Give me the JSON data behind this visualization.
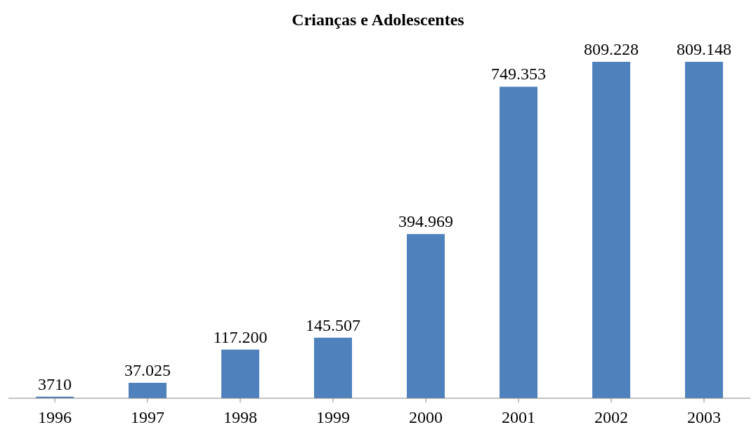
{
  "chart_data": {
    "type": "bar",
    "title": "Crianças e Adolescentes",
    "categories": [
      "1996",
      "1997",
      "1998",
      "1999",
      "2000",
      "2001",
      "2002",
      "2003"
    ],
    "values": [
      3710,
      37025,
      117200,
      145507,
      394969,
      749353,
      809228,
      809148
    ],
    "value_labels": [
      "3710",
      "37.025",
      "117.200",
      "145.507",
      "394.969",
      "749.353",
      "809.228",
      "809.148"
    ],
    "color": "#4f81bd",
    "grid": false,
    "legend": false
  }
}
